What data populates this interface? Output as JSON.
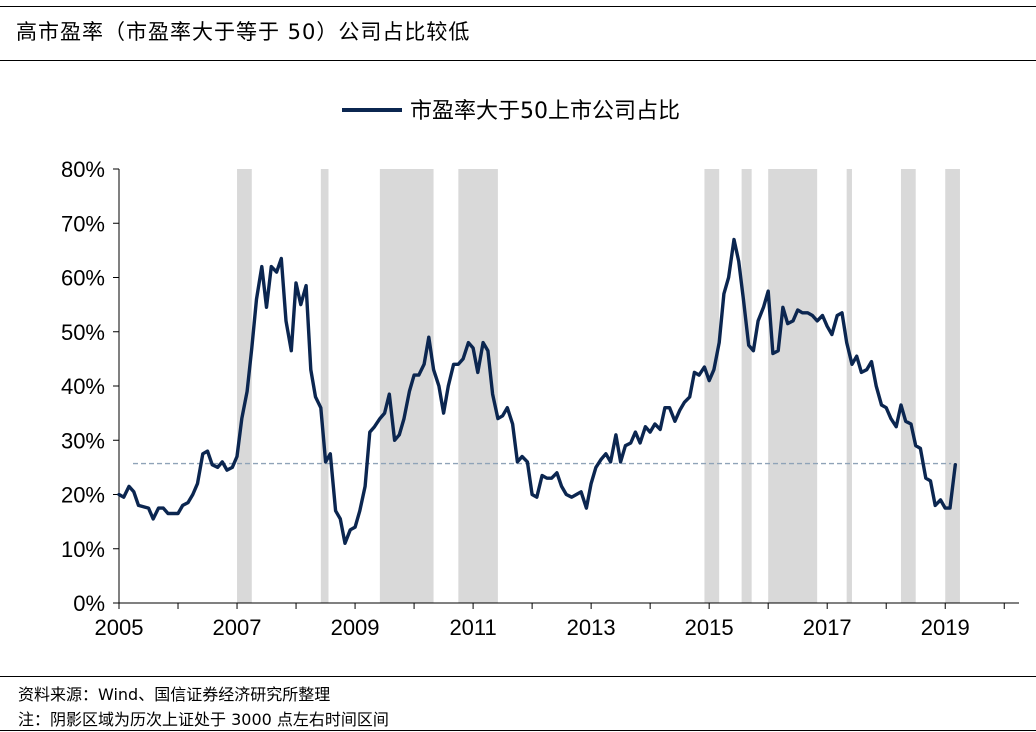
{
  "title": "高市盈率（市盈率大于等于 50）公司占比较低",
  "source": "资料来源：Wind、国信证券经济研究所整理",
  "note": "注：阴影区域为历次上证处于 3000 点左右时间区间",
  "colors": {
    "line": "#0b2650",
    "shade": "#d9d9d9",
    "reference": "#8fa3b8",
    "axis": "#000000"
  },
  "chart_data": {
    "type": "line",
    "title": "",
    "xlabel": "",
    "ylabel": "",
    "xlim": [
      2005.0,
      2020.25
    ],
    "ylim": [
      0,
      80
    ],
    "yticks": [
      0,
      10,
      20,
      30,
      40,
      50,
      60,
      70,
      80
    ],
    "ytick_labels": [
      "0%",
      "10%",
      "20%",
      "30%",
      "40%",
      "50%",
      "60%",
      "70%",
      "80%"
    ],
    "xticks": [
      2005,
      2007,
      2009,
      2011,
      2013,
      2015,
      2017,
      2019
    ],
    "xtick_labels": [
      "2005",
      "2007",
      "2009",
      "2011",
      "2013",
      "2015",
      "2017",
      "2019"
    ],
    "grid": false,
    "legend_position": "top-center",
    "series": [
      {
        "name": "市盈率大于50上市公司占比",
        "points": [
          [
            2005.0,
            20
          ],
          [
            2005.08,
            19.5
          ],
          [
            2005.17,
            21.5
          ],
          [
            2005.25,
            20.5
          ],
          [
            2005.33,
            18
          ],
          [
            2005.5,
            17.5
          ],
          [
            2005.58,
            15.5
          ],
          [
            2005.67,
            17.5
          ],
          [
            2005.75,
            17.5
          ],
          [
            2005.83,
            16.5
          ],
          [
            2005.92,
            16.5
          ],
          [
            2006.0,
            16.5
          ],
          [
            2006.08,
            18
          ],
          [
            2006.17,
            18.5
          ],
          [
            2006.25,
            20
          ],
          [
            2006.33,
            22
          ],
          [
            2006.42,
            27.5
          ],
          [
            2006.5,
            28
          ],
          [
            2006.58,
            25.5
          ],
          [
            2006.67,
            25
          ],
          [
            2006.75,
            26
          ],
          [
            2006.83,
            24.5
          ],
          [
            2006.92,
            25
          ],
          [
            2007.0,
            27
          ],
          [
            2007.08,
            34
          ],
          [
            2007.17,
            39
          ],
          [
            2007.25,
            47
          ],
          [
            2007.33,
            56
          ],
          [
            2007.42,
            62
          ],
          [
            2007.5,
            54.5
          ],
          [
            2007.58,
            62
          ],
          [
            2007.67,
            61
          ],
          [
            2007.75,
            63.5
          ],
          [
            2007.83,
            52
          ],
          [
            2007.92,
            46.5
          ],
          [
            2008.0,
            59
          ],
          [
            2008.08,
            55
          ],
          [
            2008.17,
            58.5
          ],
          [
            2008.25,
            43
          ],
          [
            2008.33,
            38
          ],
          [
            2008.42,
            36
          ],
          [
            2008.5,
            26
          ],
          [
            2008.58,
            27.5
          ],
          [
            2008.67,
            17
          ],
          [
            2008.75,
            15.5
          ],
          [
            2008.83,
            11
          ],
          [
            2008.92,
            13.5
          ],
          [
            2009.0,
            14
          ],
          [
            2009.08,
            17
          ],
          [
            2009.17,
            21.5
          ],
          [
            2009.25,
            31.5
          ],
          [
            2009.33,
            32.5
          ],
          [
            2009.42,
            34
          ],
          [
            2009.5,
            35
          ],
          [
            2009.58,
            38.5
          ],
          [
            2009.67,
            30
          ],
          [
            2009.75,
            31
          ],
          [
            2009.83,
            34
          ],
          [
            2009.92,
            39
          ],
          [
            2010.0,
            42
          ],
          [
            2010.08,
            42
          ],
          [
            2010.17,
            44
          ],
          [
            2010.25,
            49
          ],
          [
            2010.33,
            43
          ],
          [
            2010.42,
            40
          ],
          [
            2010.5,
            35
          ],
          [
            2010.58,
            40
          ],
          [
            2010.67,
            44
          ],
          [
            2010.75,
            44
          ],
          [
            2010.83,
            45
          ],
          [
            2010.92,
            48
          ],
          [
            2011.0,
            47
          ],
          [
            2011.08,
            42.5
          ],
          [
            2011.17,
            48
          ],
          [
            2011.25,
            46.5
          ],
          [
            2011.33,
            38.5
          ],
          [
            2011.42,
            34
          ],
          [
            2011.5,
            34.5
          ],
          [
            2011.58,
            36
          ],
          [
            2011.67,
            33
          ],
          [
            2011.75,
            26
          ],
          [
            2011.83,
            27
          ],
          [
            2011.92,
            26
          ],
          [
            2012.0,
            20
          ],
          [
            2012.08,
            19.5
          ],
          [
            2012.17,
            23.5
          ],
          [
            2012.25,
            23
          ],
          [
            2012.33,
            23
          ],
          [
            2012.42,
            24
          ],
          [
            2012.5,
            21.5
          ],
          [
            2012.58,
            20
          ],
          [
            2012.67,
            19.5
          ],
          [
            2012.75,
            20
          ],
          [
            2012.83,
            20.5
          ],
          [
            2012.92,
            17.5
          ],
          [
            2013.0,
            22
          ],
          [
            2013.08,
            25
          ],
          [
            2013.17,
            26.5
          ],
          [
            2013.25,
            27.5
          ],
          [
            2013.33,
            26
          ],
          [
            2013.42,
            31
          ],
          [
            2013.5,
            26
          ],
          [
            2013.58,
            29
          ],
          [
            2013.67,
            29.5
          ],
          [
            2013.75,
            31.5
          ],
          [
            2013.83,
            29.5
          ],
          [
            2013.92,
            32.5
          ],
          [
            2014.0,
            31.5
          ],
          [
            2014.08,
            33
          ],
          [
            2014.17,
            32
          ],
          [
            2014.25,
            36
          ],
          [
            2014.33,
            36
          ],
          [
            2014.42,
            33.5
          ],
          [
            2014.5,
            35.5
          ],
          [
            2014.58,
            37
          ],
          [
            2014.67,
            38
          ],
          [
            2014.75,
            42.5
          ],
          [
            2014.83,
            42
          ],
          [
            2014.92,
            43.5
          ],
          [
            2015.0,
            41
          ],
          [
            2015.08,
            43
          ],
          [
            2015.17,
            48
          ],
          [
            2015.25,
            57
          ],
          [
            2015.33,
            60
          ],
          [
            2015.42,
            67
          ],
          [
            2015.5,
            63
          ],
          [
            2015.58,
            56
          ],
          [
            2015.67,
            47.5
          ],
          [
            2015.75,
            46.5
          ],
          [
            2015.83,
            52
          ],
          [
            2015.92,
            54.5
          ],
          [
            2016.0,
            57.5
          ],
          [
            2016.08,
            46
          ],
          [
            2016.17,
            46.5
          ],
          [
            2016.25,
            54.5
          ],
          [
            2016.33,
            51.5
          ],
          [
            2016.42,
            52
          ],
          [
            2016.5,
            54
          ],
          [
            2016.58,
            53.5
          ],
          [
            2016.67,
            53.5
          ],
          [
            2016.75,
            53
          ],
          [
            2016.83,
            52
          ],
          [
            2016.92,
            53
          ],
          [
            2017.0,
            51
          ],
          [
            2017.08,
            49.5
          ],
          [
            2017.17,
            53
          ],
          [
            2017.25,
            53.5
          ],
          [
            2017.33,
            48
          ],
          [
            2017.42,
            44
          ],
          [
            2017.5,
            45.5
          ],
          [
            2017.58,
            42.5
          ],
          [
            2017.67,
            43
          ],
          [
            2017.75,
            44.5
          ],
          [
            2017.83,
            40
          ],
          [
            2017.92,
            36.5
          ],
          [
            2018.0,
            36
          ],
          [
            2018.08,
            34
          ],
          [
            2018.17,
            32.5
          ],
          [
            2018.25,
            36.5
          ],
          [
            2018.33,
            33.5
          ],
          [
            2018.42,
            33
          ],
          [
            2018.5,
            29
          ],
          [
            2018.58,
            28.5
          ],
          [
            2018.67,
            23
          ],
          [
            2018.75,
            22.5
          ],
          [
            2018.83,
            18
          ],
          [
            2018.92,
            19
          ],
          [
            2019.0,
            17.5
          ],
          [
            2019.08,
            17.5
          ],
          [
            2019.17,
            25.5
          ]
        ]
      }
    ],
    "reference_line": {
      "y": 25.7,
      "style": "dashed"
    },
    "shaded_ranges": [
      [
        2007.0,
        2007.25
      ],
      [
        2008.42,
        2008.55
      ],
      [
        2009.42,
        2010.33
      ],
      [
        2010.75,
        2011.42
      ],
      [
        2014.92,
        2015.17
      ],
      [
        2015.55,
        2015.72
      ],
      [
        2016.0,
        2016.83
      ],
      [
        2017.33,
        2017.42
      ],
      [
        2018.25,
        2018.5
      ],
      [
        2019.0,
        2019.25
      ]
    ]
  }
}
